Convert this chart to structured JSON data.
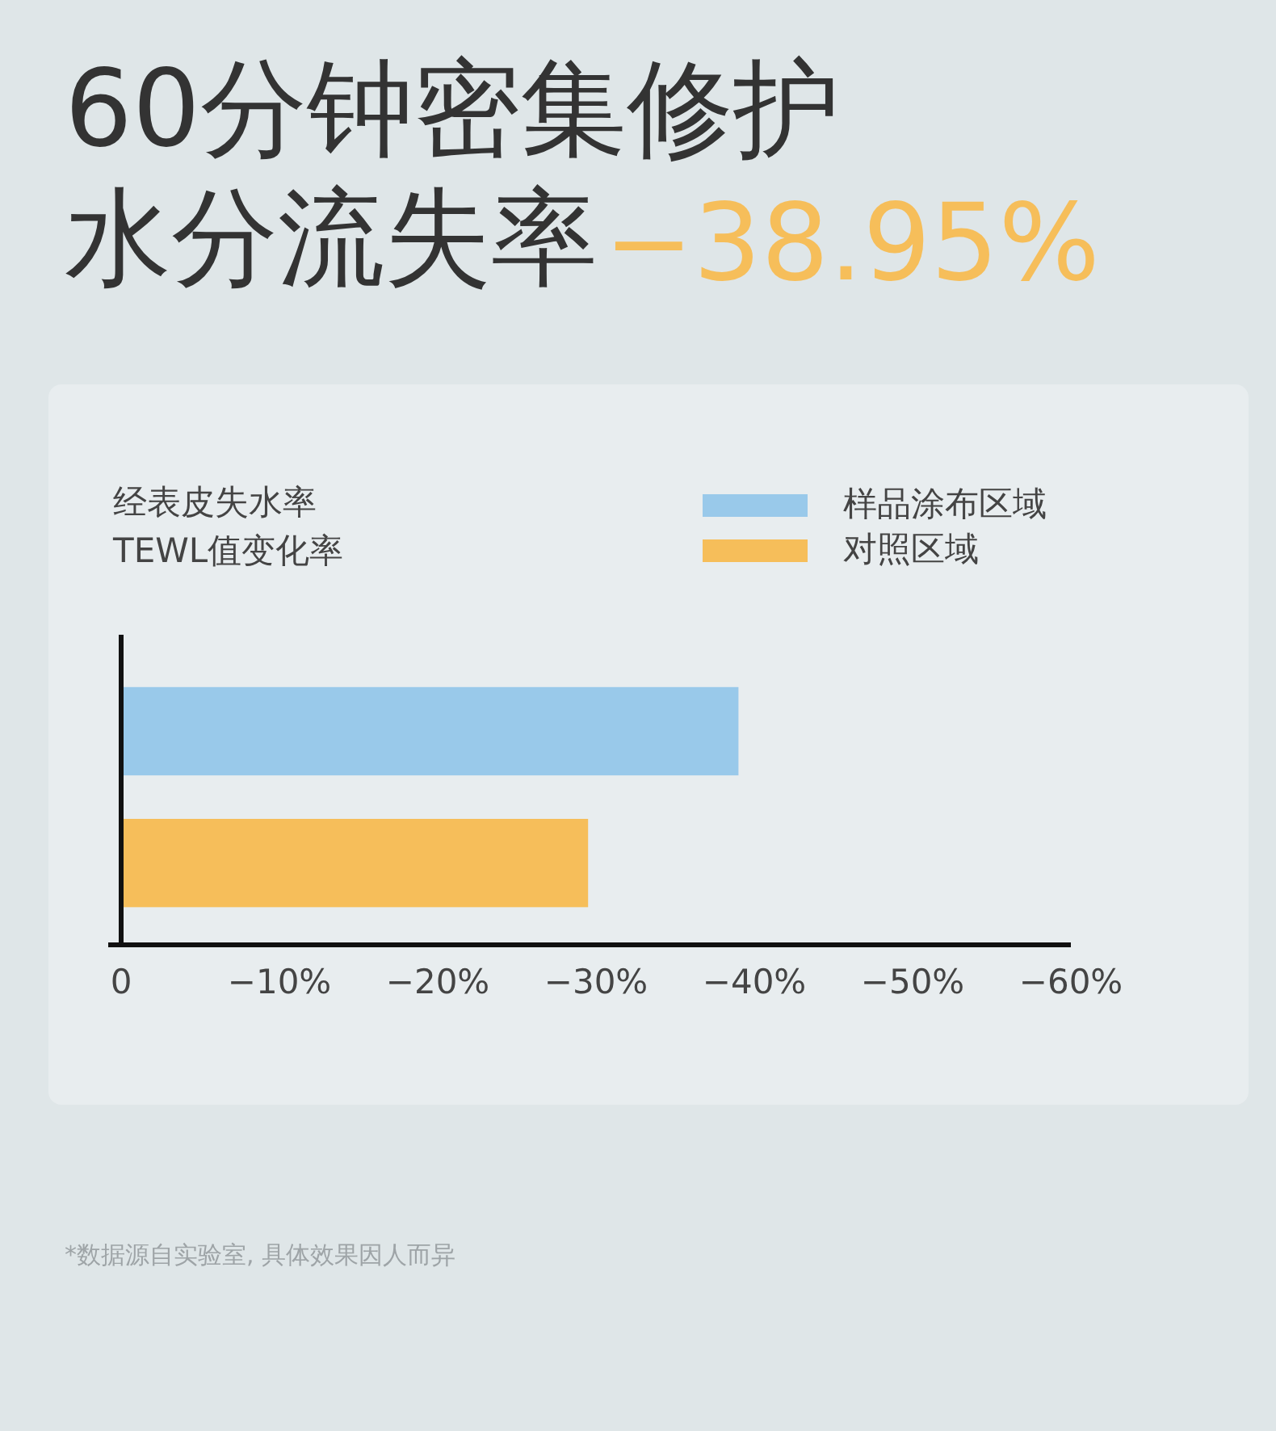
{
  "chart_data": {
    "type": "bar",
    "orientation": "horizontal",
    "title": "60分钟密集修护水分流失率",
    "subtitle": "−38.95%",
    "ylabel": "经表皮失水率\nTEWL值变化率",
    "categories": [
      null
    ],
    "series": [
      {
        "name": "样品涂布区域",
        "color": "#99c9ea",
        "values": [
          -39
        ]
      },
      {
        "name": "对照区域",
        "color": "#f6be5a",
        "values": [
          -29.5
        ]
      }
    ],
    "xlim": [
      0,
      -60
    ],
    "xticks": [
      0,
      {
        "value": -10,
        "label": "−10%"
      },
      {
        "value": -20,
        "label": "−20%"
      },
      {
        "value": -30,
        "label": "−30%"
      },
      {
        "value": -40,
        "label": "−40%"
      },
      {
        "value": -50,
        "label": "−50%"
      },
      {
        "value": -60,
        "label": "−60%"
      }
    ],
    "legend": "top right",
    "grid": false,
    "annotations": [
      "*数据源自实验室, 具体效果因人而异"
    ]
  }
}
